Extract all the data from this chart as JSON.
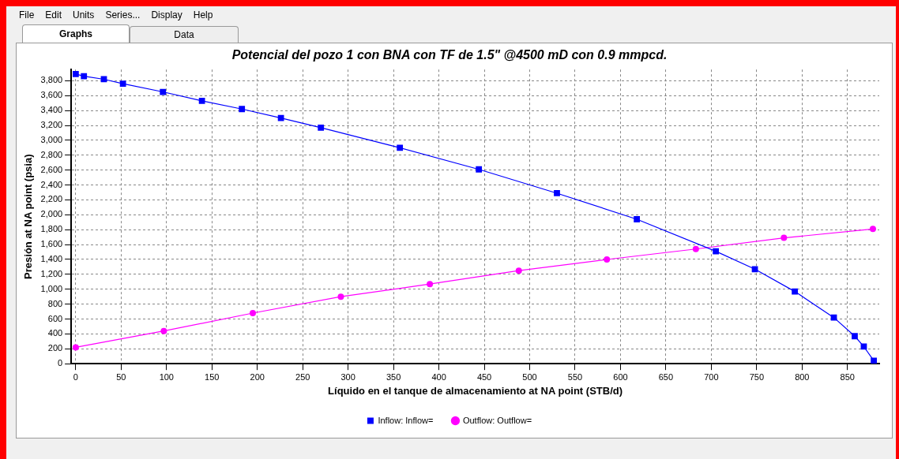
{
  "chart_data": {
    "type": "line",
    "title": "Potencial del pozo 1 con BNA con TF de 1.5\" @4500 mD con 0.9 mmpcd.",
    "xlabel": "Líquido en el tanque de almacenamiento at NA point (STB/d)",
    "ylabel": "Presión at NA point (psia)",
    "xlim": [
      -5,
      885
    ],
    "xticks": [
      0,
      50,
      100,
      150,
      200,
      250,
      300,
      350,
      400,
      450,
      500,
      550,
      600,
      650,
      700,
      750,
      800,
      850
    ],
    "ylim": [
      0,
      3950
    ],
    "yticks": [
      {
        "value": 0,
        "label": "0"
      },
      {
        "value": 200,
        "label": "200"
      },
      {
        "value": 400,
        "label": "400"
      },
      {
        "value": 600,
        "label": "600"
      },
      {
        "value": 800,
        "label": "800"
      },
      {
        "value": 1000,
        "label": "1,000"
      },
      {
        "value": 1200,
        "label": "1,200"
      },
      {
        "value": 1400,
        "label": "1,400"
      },
      {
        "value": 1600,
        "label": "1,600"
      },
      {
        "value": 1800,
        "label": "1,800"
      },
      {
        "value": 2000,
        "label": "2,000"
      },
      {
        "value": 2200,
        "label": "2,200"
      },
      {
        "value": 2400,
        "label": "2,400"
      },
      {
        "value": 2600,
        "label": "2,600"
      },
      {
        "value": 2800,
        "label": "2,800"
      },
      {
        "value": 3000,
        "label": "3,000"
      },
      {
        "value": 3200,
        "label": "3,200"
      },
      {
        "value": 3400,
        "label": "3,400"
      },
      {
        "value": 3600,
        "label": "3,600"
      },
      {
        "value": 3800,
        "label": "3,800"
      }
    ],
    "grid": true,
    "legend": "bottom",
    "line_style": "solid",
    "series": [
      {
        "name": "Inflow: Inflow=",
        "color": "#0000ff",
        "marker": "square",
        "x": [
          0,
          9,
          31,
          52,
          96,
          139,
          183,
          226,
          270,
          357,
          444,
          530,
          618,
          705,
          748,
          792,
          835,
          858,
          868,
          879
        ],
        "values": [
          3890,
          3860,
          3820,
          3760,
          3650,
          3530,
          3420,
          3300,
          3170,
          2900,
          2610,
          2290,
          1940,
          1510,
          1270,
          970,
          620,
          370,
          230,
          40
        ]
      },
      {
        "name": "Outflow: Outflow=",
        "color": "#ff00ff",
        "marker": "circle",
        "x": [
          0,
          97,
          195,
          292,
          390,
          488,
          585,
          683,
          780,
          878
        ],
        "values": [
          220,
          440,
          680,
          900,
          1070,
          1250,
          1400,
          1540,
          1690,
          1810
        ]
      }
    ],
    "annotations": [
      "File",
      "Edit",
      "Units",
      "Series...",
      "Display",
      "Help",
      "Graphs",
      "Data"
    ]
  }
}
